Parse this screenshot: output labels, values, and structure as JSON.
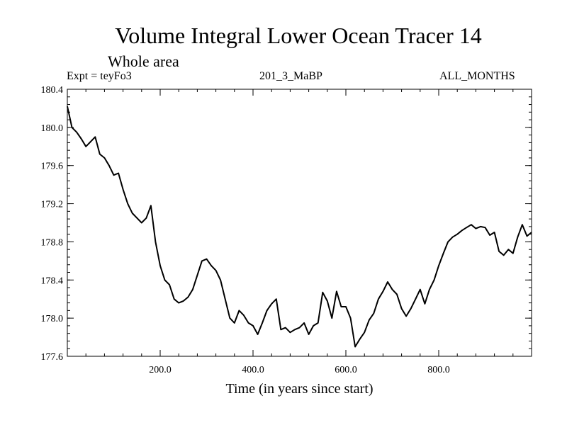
{
  "chart_data": {
    "type": "line",
    "title": "Volume Integral Lower Ocean Tracer 14",
    "subtitle": "Whole area",
    "expt_label": "Expt = teyFo3",
    "period_label": "201_3_MaBP",
    "months_label": "ALL_MONTHS",
    "xlabel": "Time (in years since start)",
    "ylabel": "",
    "xlim": [
      0,
      1000
    ],
    "ylim": [
      177.6,
      180.4
    ],
    "xticks": [
      200,
      400,
      600,
      800
    ],
    "xtick_labels": [
      "200.0",
      "400.0",
      "600.0",
      "800.0"
    ],
    "yticks": [
      177.6,
      178.0,
      178.4,
      178.8,
      179.2,
      179.6,
      180.0,
      180.4
    ],
    "ytick_labels": [
      "177.6",
      "178.0",
      "178.4",
      "178.8",
      "179.2",
      "179.6",
      "180.0",
      "180.4"
    ],
    "grid": false,
    "series": [
      {
        "name": "Volume Integral",
        "x": [
          0,
          10,
          20,
          30,
          40,
          50,
          60,
          70,
          80,
          90,
          100,
          110,
          120,
          130,
          140,
          150,
          160,
          170,
          180,
          190,
          200,
          210,
          220,
          230,
          240,
          250,
          260,
          270,
          280,
          290,
          300,
          310,
          320,
          330,
          340,
          350,
          360,
          370,
          380,
          390,
          400,
          410,
          420,
          430,
          440,
          450,
          460,
          470,
          480,
          490,
          500,
          510,
          520,
          530,
          540,
          550,
          560,
          570,
          580,
          590,
          600,
          610,
          620,
          630,
          640,
          650,
          660,
          670,
          680,
          690,
          700,
          710,
          720,
          730,
          740,
          750,
          760,
          770,
          780,
          790,
          800,
          810,
          820,
          830,
          840,
          850,
          860,
          870,
          880,
          890,
          900,
          910,
          920,
          930,
          940,
          950,
          960,
          970,
          980,
          990,
          1000
        ],
        "values": [
          180.22,
          180.0,
          179.95,
          179.88,
          179.8,
          179.85,
          179.9,
          179.72,
          179.68,
          179.6,
          179.5,
          179.52,
          179.35,
          179.2,
          179.1,
          179.05,
          179.0,
          179.05,
          179.18,
          178.8,
          178.55,
          178.4,
          178.35,
          178.2,
          178.16,
          178.18,
          178.22,
          178.3,
          178.45,
          178.6,
          178.62,
          178.55,
          178.5,
          178.4,
          178.2,
          178.0,
          177.95,
          178.08,
          178.03,
          177.95,
          177.92,
          177.83,
          177.95,
          178.08,
          178.15,
          178.2,
          177.88,
          177.9,
          177.85,
          177.88,
          177.9,
          177.95,
          177.83,
          177.92,
          177.95,
          178.27,
          178.18,
          178.0,
          178.28,
          178.12,
          178.12,
          178.0,
          177.7,
          177.78,
          177.85,
          177.98,
          178.05,
          178.2,
          178.28,
          178.38,
          178.3,
          178.25,
          178.1,
          178.02,
          178.1,
          178.2,
          178.3,
          178.15,
          178.3,
          178.4,
          178.55,
          178.68,
          178.8,
          178.85,
          178.88,
          178.92,
          178.95,
          178.98,
          178.94,
          178.96,
          178.95,
          178.87,
          178.9,
          178.7,
          178.66,
          178.72,
          178.68,
          178.85,
          178.98,
          178.86,
          178.9
        ]
      }
    ]
  }
}
